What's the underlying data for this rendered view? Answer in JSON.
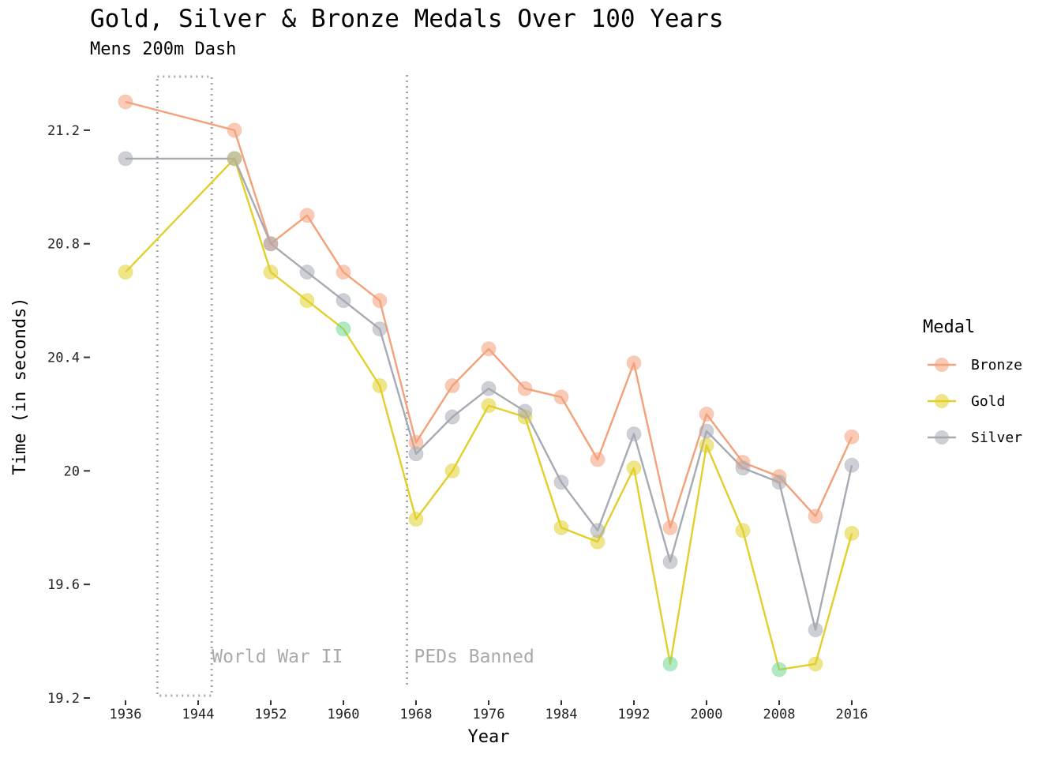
{
  "title": "Gold, Silver & Bronze Medals Over 100 Years",
  "subtitle": "Mens 200m Dash",
  "colors": {
    "Bronze": "#f4a07a",
    "Gold": "#e2cf2b",
    "Silver": "#a6aab2",
    "highlight": "#6fd890",
    "annotation": "#aaaaaa"
  },
  "chart_data": {
    "type": "line",
    "title": "Gold, Silver & Bronze Medals Over 100 Years",
    "subtitle": "Mens 200m Dash",
    "xlabel": "Year",
    "ylabel": "Time (in seconds)",
    "xlim": [
      1936,
      2016
    ],
    "ylim": [
      19.2,
      21.4
    ],
    "x_ticks": [
      1936,
      1944,
      1952,
      1960,
      1968,
      1976,
      1984,
      1992,
      2000,
      2008,
      2016
    ],
    "y_ticks": [
      19.2,
      19.6,
      20,
      20.4,
      20.8,
      21.2
    ],
    "y_tick_labels": [
      "19.2",
      "19.6",
      "20",
      "20.4",
      "20.8",
      "21.2"
    ],
    "grid": false,
    "legend": {
      "title": "Medal",
      "position": "right",
      "entries": [
        "Bronze",
        "Gold",
        "Silver"
      ]
    },
    "series": [
      {
        "name": "Bronze",
        "x": [
          1936,
          1948,
          1952,
          1956,
          1960,
          1964,
          1968,
          1972,
          1976,
          1980,
          1984,
          1988,
          1992,
          1996,
          2000,
          2004,
          2008,
          2012,
          2016
        ],
        "values": [
          21.3,
          21.2,
          20.8,
          20.9,
          20.7,
          20.6,
          20.1,
          20.3,
          20.43,
          20.29,
          20.26,
          20.04,
          20.38,
          19.8,
          20.2,
          20.03,
          19.98,
          19.84,
          20.12
        ]
      },
      {
        "name": "Gold",
        "x": [
          1936,
          1948,
          1952,
          1956,
          1960,
          1964,
          1968,
          1972,
          1976,
          1980,
          1984,
          1988,
          1992,
          1996,
          2000,
          2004,
          2008,
          2012,
          2016
        ],
        "values": [
          20.7,
          21.1,
          20.7,
          20.6,
          20.5,
          20.3,
          19.83,
          20.0,
          20.23,
          20.19,
          19.8,
          19.75,
          20.01,
          19.32,
          20.09,
          19.79,
          19.3,
          19.32,
          19.78
        ],
        "highlighted_x": [
          1960,
          1996,
          2008
        ]
      },
      {
        "name": "Silver",
        "x": [
          1936,
          1948,
          1952,
          1956,
          1960,
          1964,
          1968,
          1972,
          1976,
          1980,
          1984,
          1988,
          1992,
          1996,
          2000,
          2004,
          2008,
          2012,
          2016
        ],
        "values": [
          21.1,
          21.1,
          20.8,
          20.7,
          20.6,
          20.5,
          20.06,
          20.19,
          20.29,
          20.21,
          19.96,
          19.79,
          20.13,
          19.68,
          20.14,
          20.01,
          19.96,
          19.44,
          20.02
        ]
      }
    ],
    "annotations": [
      {
        "label": "World War II",
        "x_start": 1939.5,
        "x_end": 1945.5
      },
      {
        "label": "PEDs Banned",
        "x": 1967
      }
    ]
  }
}
